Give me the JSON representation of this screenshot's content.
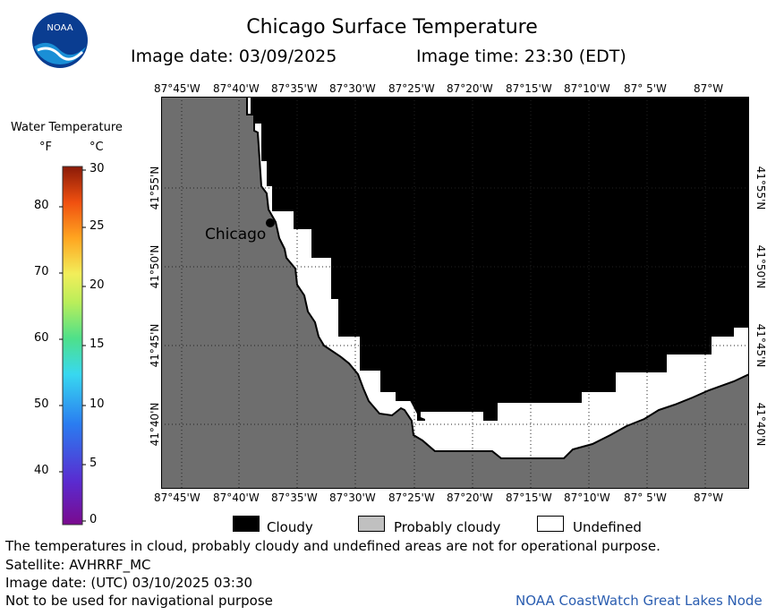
{
  "header": {
    "title": "Chicago Surface Temperature",
    "image_date": "Image date: 03/09/2025",
    "image_time": "Image time: 23:30 (EDT)"
  },
  "logo": {
    "text": "NOAA"
  },
  "colorbar": {
    "title": "Water Temperature",
    "unit_f": "°F",
    "unit_c": "°C",
    "f_ticks": [
      "80",
      "70",
      "60",
      "50",
      "40"
    ],
    "c_ticks": [
      "30",
      "25",
      "20",
      "15",
      "10",
      "5",
      "0"
    ]
  },
  "map": {
    "lon_labels": [
      "87°45'W",
      "87°40'W",
      "87°35'W",
      "87°30'W",
      "87°25'W",
      "87°20'W",
      "87°15'W",
      "87°10'W",
      "87° 5'W",
      "87°W"
    ],
    "lat_labels": [
      "41°55'N",
      "41°50'N",
      "41°45'N",
      "41°40'N"
    ],
    "city_label": "Chicago",
    "colors": {
      "land": "#6e6e6e",
      "cloudy": "#000000",
      "undefined": "#ffffff",
      "probably_cloudy": "#c0c0c0",
      "grid": "#222222"
    }
  },
  "legend": {
    "cloudy": "Cloudy",
    "probably_cloudy": "Probably cloudy",
    "undefined": "Undefined"
  },
  "footer": {
    "disclaimer": "The temperatures in cloud, probably cloudy and undefined areas are not for operational purpose.",
    "satellite": "Satellite: AVHRRF_MC",
    "utc_date": "Image date: (UTC) 03/10/2025  03:30",
    "nav_warning": "Not to be used for navigational purpose",
    "credit": "NOAA CoastWatch Great Lakes Node"
  }
}
